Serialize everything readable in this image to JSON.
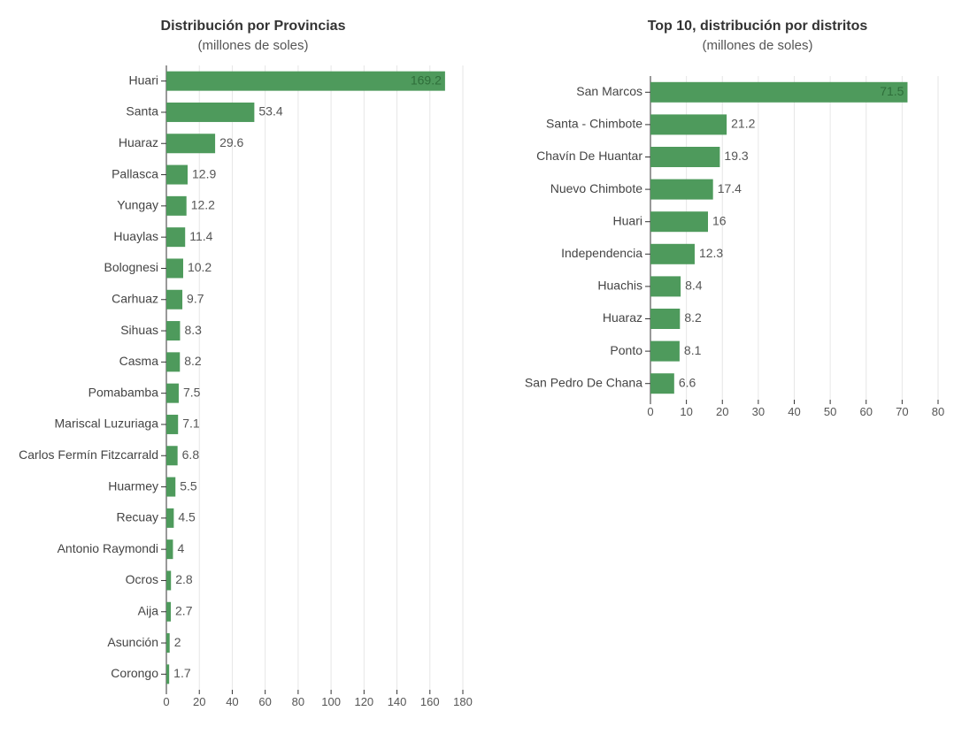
{
  "chart_data": [
    {
      "type": "bar",
      "orientation": "horizontal",
      "title": "Distribución por Provincias",
      "subtitle": "(millones de soles)",
      "categories": [
        "Huari",
        "Santa",
        "Huaraz",
        "Pallasca",
        "Yungay",
        "Huaylas",
        "Bolognesi",
        "Carhuaz",
        "Sihuas",
        "Casma",
        "Pomabamba",
        "Mariscal Luzuriaga",
        "Carlos Fermín Fitzcarrald",
        "Huarmey",
        "Recuay",
        "Antonio Raymondi",
        "Ocros",
        "Aija",
        "Asunción",
        "Corongo"
      ],
      "values": [
        169.2,
        53.4,
        29.6,
        12.9,
        12.2,
        11.4,
        10.2,
        9.7,
        8.3,
        8.2,
        7.5,
        7.1,
        6.8,
        5.5,
        4.5,
        4,
        2.8,
        2.7,
        2,
        1.7
      ],
      "value_labels": [
        "169.2",
        "53.4",
        "29.6",
        "12.9",
        "12.2",
        "11.4",
        "10.2",
        "9.7",
        "8.3",
        "8.2",
        "7.5",
        "7.1",
        "6.8",
        "5.5",
        "4.5",
        "4",
        "2.8",
        "2.7",
        "2",
        "1.7"
      ],
      "xlim": [
        0,
        180
      ],
      "xticks": [
        0,
        20,
        40,
        60,
        80,
        100,
        120,
        140,
        160,
        180
      ],
      "grid": true,
      "bar_color": "#4e9a5c",
      "inside_label_color": "#2f6e3a"
    },
    {
      "type": "bar",
      "orientation": "horizontal",
      "title": "Top 10, distribución por distritos",
      "subtitle": "(millones de soles)",
      "categories": [
        "San Marcos",
        "Santa - Chimbote",
        "Chavín De Huantar",
        "Nuevo Chimbote",
        "Huari",
        "Independencia",
        "Huachis",
        "Huaraz",
        "Ponto",
        "San Pedro De Chana"
      ],
      "values": [
        71.5,
        21.2,
        19.3,
        17.4,
        16,
        12.3,
        8.4,
        8.2,
        8.1,
        6.6
      ],
      "value_labels": [
        "71.5",
        "21.2",
        "19.3",
        "17.4",
        "16",
        "12.3",
        "8.4",
        "8.2",
        "8.1",
        "6.6"
      ],
      "xlim": [
        0,
        80
      ],
      "xticks": [
        0,
        10,
        20,
        30,
        40,
        50,
        60,
        70,
        80
      ],
      "grid": true,
      "bar_color": "#4e9a5c",
      "inside_label_color": "#2f6e3a"
    }
  ]
}
